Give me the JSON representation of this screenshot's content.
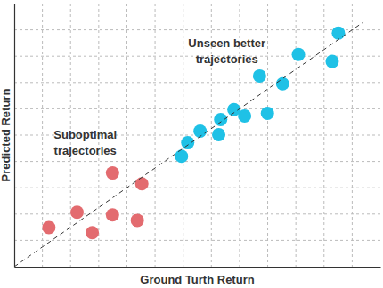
{
  "chart_data": {
    "type": "scatter",
    "x_label": "Ground Turth Return",
    "y_label": "Predicted Return",
    "xlim": [
      0,
      13
    ],
    "ylim": [
      0,
      10
    ],
    "xticks": [
      1,
      2,
      3,
      4,
      5,
      6,
      7,
      8,
      9,
      10,
      11,
      12
    ],
    "yticks": [
      1,
      2,
      3,
      4,
      5,
      6,
      7,
      8,
      9
    ],
    "grid": true,
    "tick_labels": false,
    "series": [
      {
        "type": "scatter",
        "marker": "circle",
        "color": "#e36b6f",
        "x": [
          1.23,
          2.23,
          2.77,
          3.49,
          3.49,
          4.37,
          4.53
        ],
        "values": [
          1.49,
          2.07,
          1.29,
          1.97,
          3.56,
          1.76,
          3.15
        ]
      },
      {
        "type": "scatter",
        "marker": "circle",
        "color": "#1fc1e6",
        "x": [
          5.94,
          6.16,
          6.6,
          7.26,
          7.33,
          7.8,
          8.18,
          8.99,
          8.71,
          9.53,
          10.09,
          11.29,
          11.51
        ],
        "values": [
          4.2,
          4.71,
          5.15,
          5.02,
          5.59,
          5.97,
          5.73,
          5.83,
          7.25,
          6.95,
          8.07,
          7.8,
          8.88
        ]
      },
      {
        "type": "line",
        "line_style": "dashed",
        "color": "#333333",
        "x": [
          0,
          12.4
        ],
        "values": [
          0,
          9.3
        ]
      }
    ],
    "annotations": [
      {
        "lines": [
          "Suboptimal",
          "trajectories"
        ],
        "x": 2.52,
        "y": 4.85
      },
      {
        "lines": [
          "Unseen better",
          "trajectories"
        ],
        "x": 7.55,
        "y": 8.35
      }
    ]
  }
}
